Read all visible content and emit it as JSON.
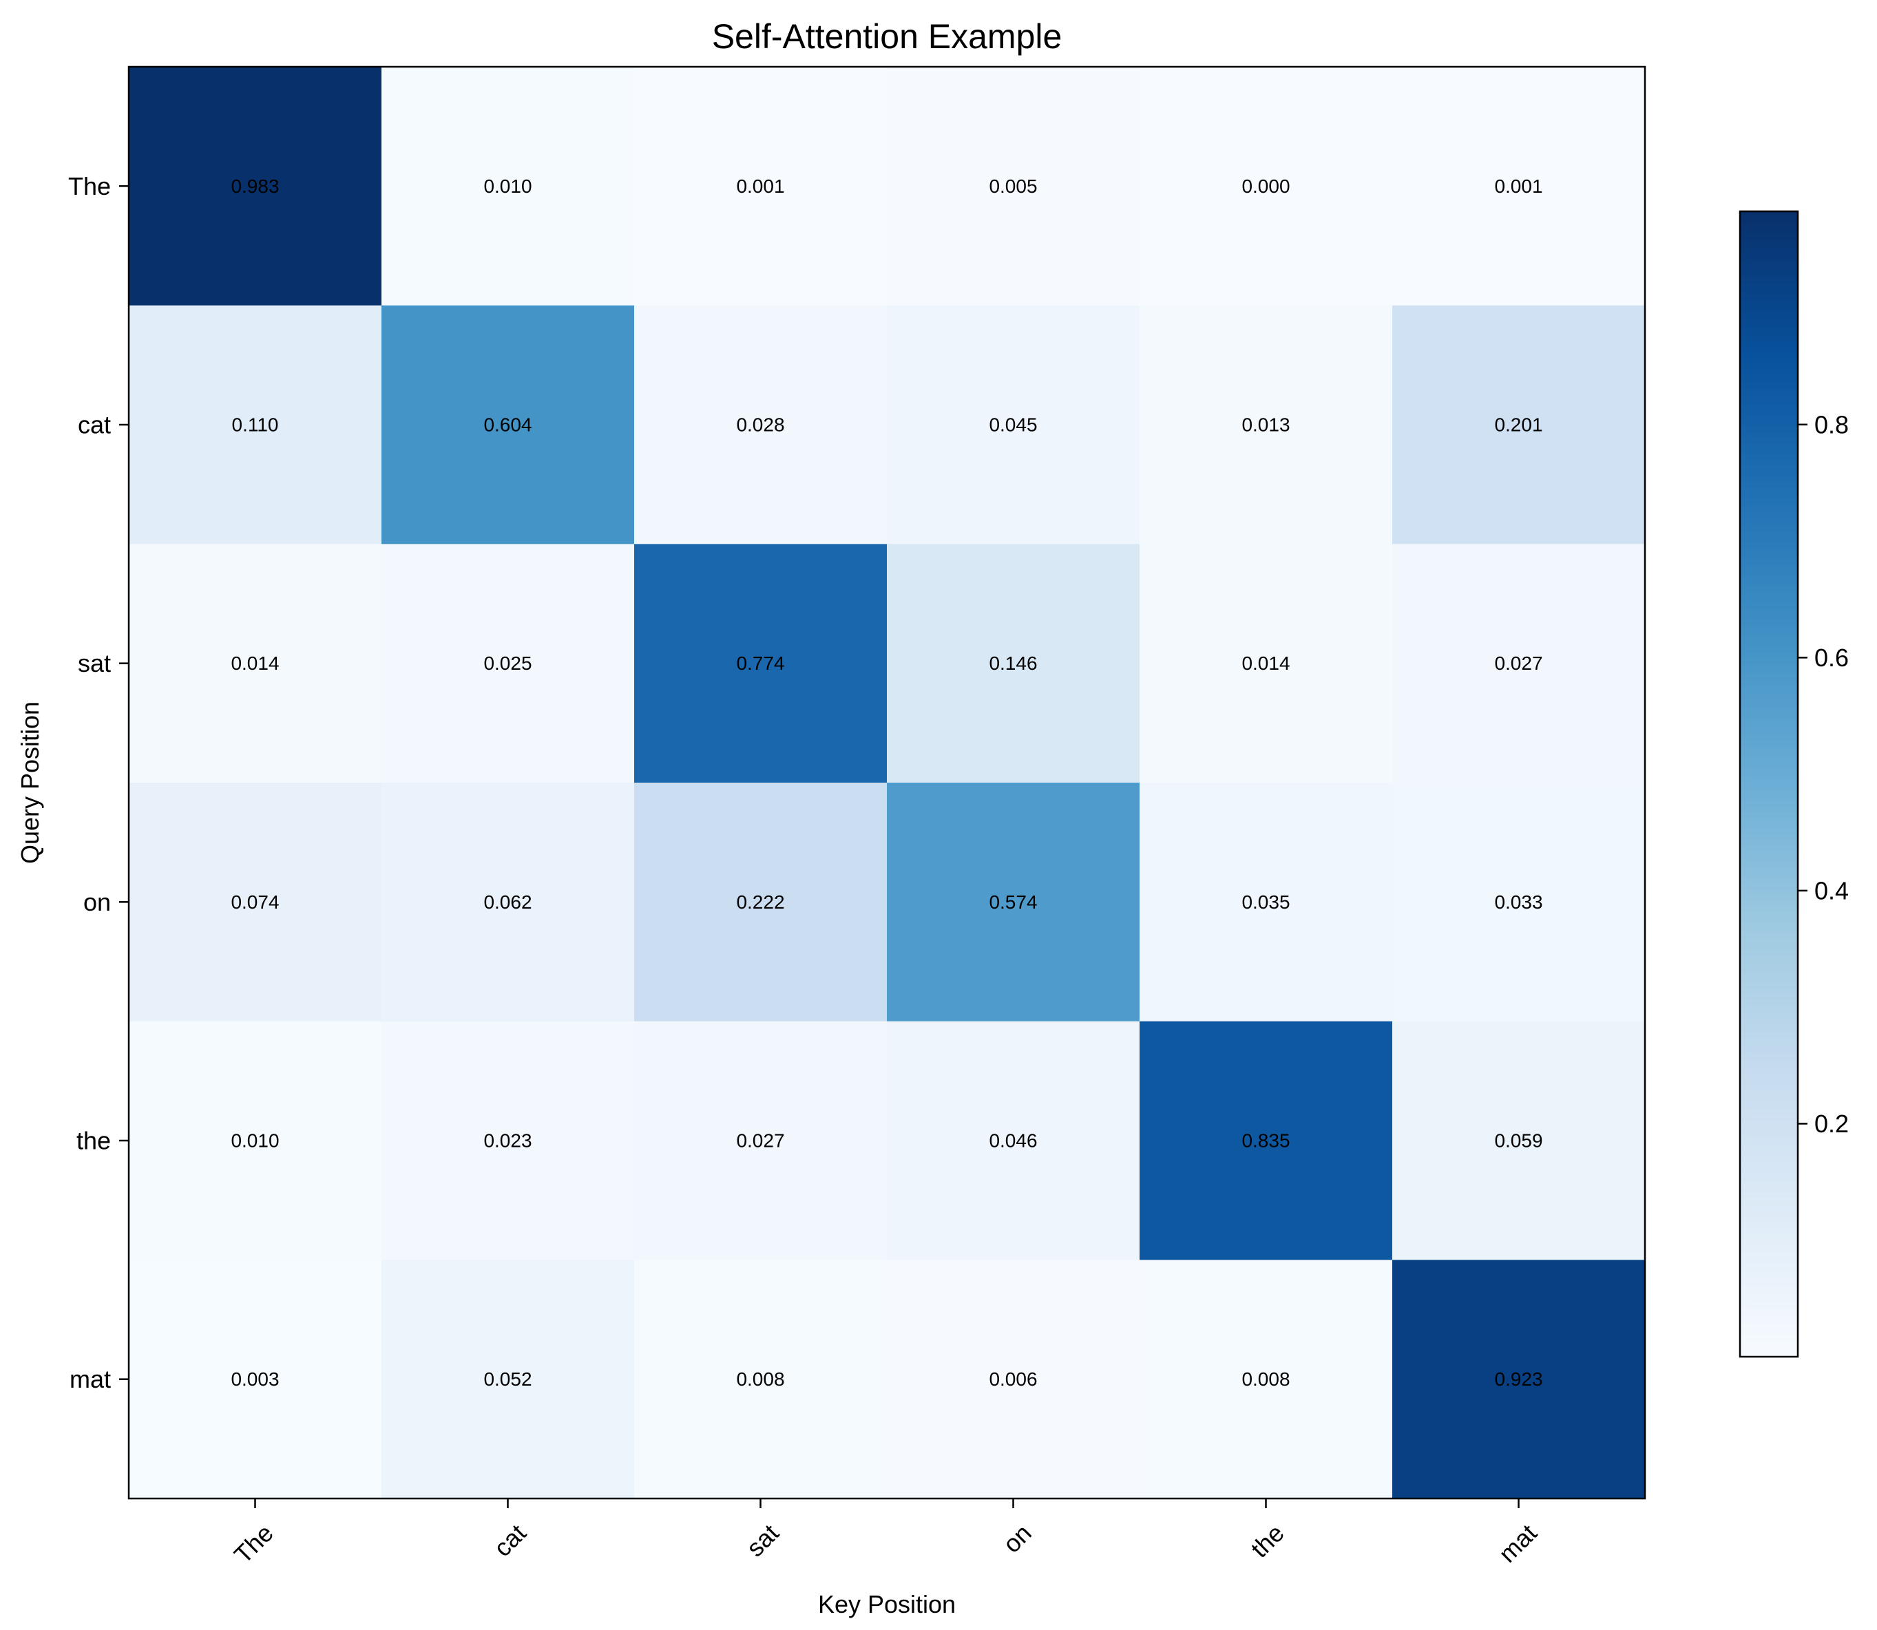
{
  "chart_data": {
    "type": "heatmap",
    "title": "Self-Attention Example",
    "xlabel": "Key Position",
    "ylabel": "Query Position",
    "x_categories": [
      "The",
      "cat",
      "sat",
      "on",
      "the",
      "mat"
    ],
    "y_categories": [
      "The",
      "cat",
      "sat",
      "on",
      "the",
      "mat"
    ],
    "values": [
      [
        0.983,
        0.01,
        0.001,
        0.005,
        0.0,
        0.001
      ],
      [
        0.11,
        0.604,
        0.028,
        0.045,
        0.013,
        0.201
      ],
      [
        0.014,
        0.025,
        0.774,
        0.146,
        0.014,
        0.027
      ],
      [
        0.074,
        0.062,
        0.222,
        0.574,
        0.035,
        0.033
      ],
      [
        0.01,
        0.023,
        0.027,
        0.046,
        0.835,
        0.059
      ],
      [
        0.003,
        0.052,
        0.008,
        0.006,
        0.008,
        0.923
      ]
    ],
    "value_labels": [
      [
        "0.983",
        "0.010",
        "0.001",
        "0.005",
        "0.000",
        "0.001"
      ],
      [
        "0.110",
        "0.604",
        "0.028",
        "0.045",
        "0.013",
        "0.201"
      ],
      [
        "0.014",
        "0.025",
        "0.774",
        "0.146",
        "0.014",
        "0.027"
      ],
      [
        "0.074",
        "0.062",
        "0.222",
        "0.574",
        "0.035",
        "0.033"
      ],
      [
        "0.010",
        "0.023",
        "0.027",
        "0.046",
        "0.835",
        "0.059"
      ],
      [
        "0.003",
        "0.052",
        "0.008",
        "0.006",
        "0.008",
        "0.923"
      ]
    ],
    "colormap": "Blues",
    "color_range": [
      0.0,
      0.983
    ],
    "colorbar": {
      "ticks": [
        0.2,
        0.4,
        0.6,
        0.8
      ],
      "tick_labels": [
        "0.2",
        "0.4",
        "0.6",
        "0.8"
      ],
      "placement": "right"
    },
    "x_tick_rotation_deg": 45,
    "grid": false
  }
}
